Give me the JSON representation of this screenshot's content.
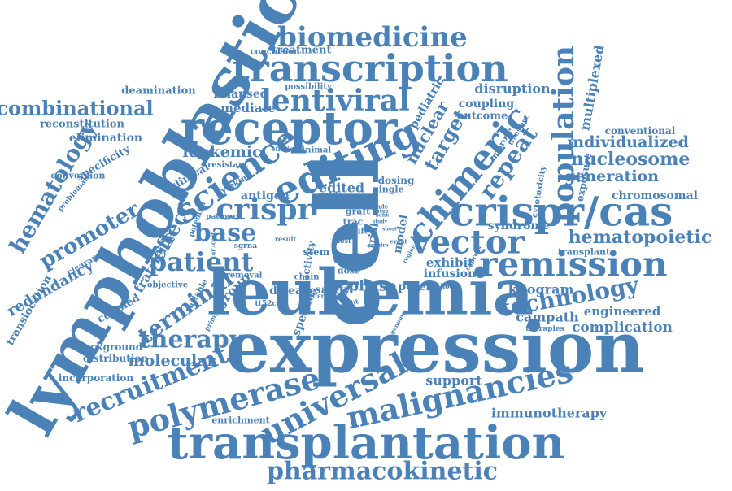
{
  "colors": {
    "word": "#4a82b8",
    "background": "#ffffff"
  },
  "words": [
    "cell",
    "leukemia",
    "expression",
    "lymphoblastic",
    "receptor",
    "transplantation",
    "transcription",
    "editing",
    "crispr/cas",
    "remission",
    "science",
    "chimeric",
    "biomedicine",
    "lentiviral",
    "population",
    "vector",
    "malignancies",
    "universal",
    "polymerase",
    "pharmacokinetic",
    "recruitment",
    "hematology",
    "patient",
    "crispr",
    "technology",
    "base",
    "therapy",
    "combinational",
    "hematopoietic",
    "promoter",
    "terminal",
    "repeat",
    "target",
    "nucleosome",
    "individualized",
    "generation",
    "leukemic",
    "molecular",
    "complication",
    "engineered",
    "campath",
    "support",
    "immunotherapy",
    "redundancy",
    "nuclear",
    "pediatric",
    "effect",
    "kilogram",
    "phase",
    "potent",
    "chromosomal",
    "multiplexed",
    "exposure",
    "conventional",
    "reconstitution",
    "elimination",
    "specificity",
    "deamination",
    "mediate",
    "relapsed",
    "coupling",
    "disruption",
    "outcome",
    "exhibit",
    "infusion",
    "syndrome",
    "transplant",
    "fratricide",
    "edited",
    "antigen",
    "clinical",
    "stem",
    "child",
    "dose",
    "model",
    "trial",
    "group",
    "disease",
    "safety",
    "specific",
    "coupled",
    "variable",
    "primary",
    "translocation",
    "distribution",
    "background",
    "incorporation",
    "enrichment",
    "treatment",
    "conclusion",
    "possibility",
    "minimal",
    "efficient",
    "resistant",
    "cytokine",
    "potential",
    "conversion",
    "problematic",
    "clearance",
    "objective",
    "removal",
    "pathway",
    "sgrna",
    "guide",
    "linear",
    "graft",
    "trac",
    "life",
    "host",
    "activity",
    "result",
    "chain",
    "single",
    "dosing",
    "event",
    "method",
    "human",
    "genome",
    "weight",
    "therapies",
    "cytotoxicity",
    "improve",
    "transient",
    "express",
    "bank",
    "study",
    "short",
    "tt52car",
    "car7cart",
    "offer",
    "region",
    "require",
    "grade",
    "high"
  ]
}
